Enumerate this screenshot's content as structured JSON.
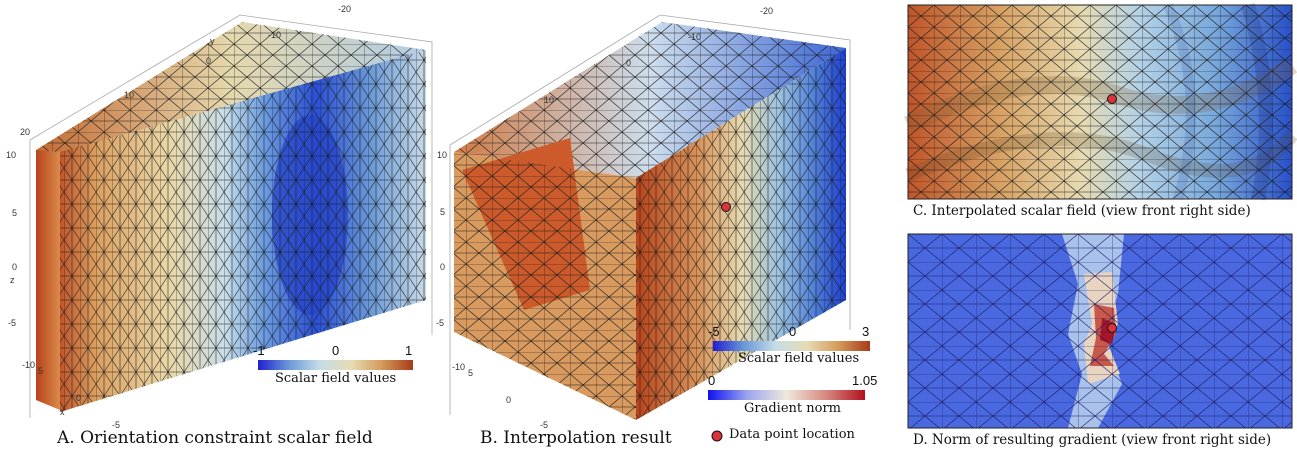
{
  "panels": {
    "a": {
      "caption": "A. Orientation constraint scalar field",
      "axes": {
        "y_label": "y",
        "z_label": "z",
        "x_label": "x",
        "y_ticks": [
          "-20",
          "-10",
          "0",
          "10",
          "20"
        ],
        "z_ticks": [
          "10",
          "5",
          "0",
          "-5",
          "-10"
        ],
        "x_ticks": [
          "-5",
          "0",
          "5"
        ]
      },
      "legend": {
        "label": "Scalar field values",
        "ticks": [
          "-1",
          "0",
          "1"
        ]
      }
    },
    "b": {
      "caption": "B. Interpolation result",
      "axes": {
        "y_ticks": [
          "-20",
          "-10",
          "0",
          "10"
        ],
        "z_ticks": [
          "10",
          "5",
          "0",
          "-5",
          "-10"
        ],
        "x_ticks": [
          "-5",
          "0",
          "5"
        ]
      },
      "scalar_legend": {
        "label": "Scalar field values",
        "ticks": [
          "-5",
          "0",
          "3"
        ]
      },
      "gradient_legend": {
        "label": "Gradient norm",
        "ticks": [
          "0",
          "1.05"
        ]
      },
      "point_legend": {
        "label": "Data point location"
      }
    },
    "c": {
      "caption": "C. Interpolated scalar field (view front right side)"
    },
    "d": {
      "caption": "D. Norm of resulting gradient (view front right side)"
    }
  },
  "colors": {
    "scalar_low": "#2a4fd6",
    "scalar_mid": "#e6dcb4",
    "scalar_high": "#b8431c",
    "gradient_low": "#2222ee",
    "gradient_high": "#b81220",
    "data_point": "#d8343a"
  }
}
